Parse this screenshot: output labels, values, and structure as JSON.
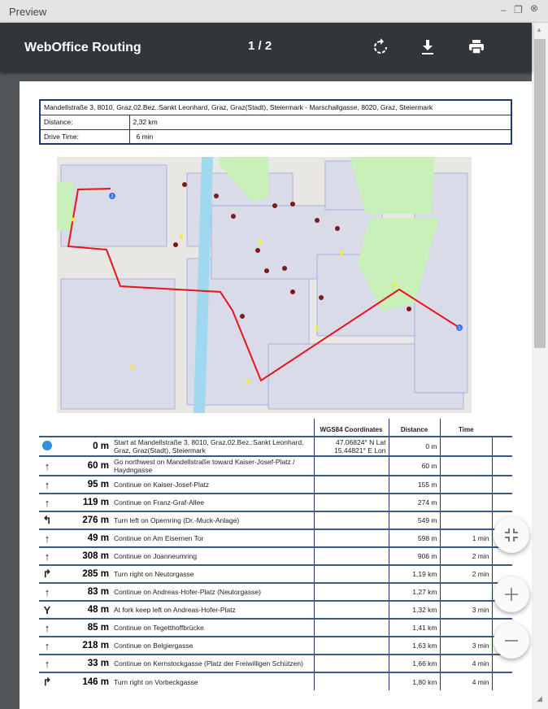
{
  "window": {
    "title": "Preview"
  },
  "toolbar": {
    "app_title": "WebOffice Routing",
    "page_indicator": "1 / 2",
    "icons": [
      "rotate-icon",
      "download-icon",
      "print-icon"
    ]
  },
  "summary": {
    "route": "Mandellstraße 3, 8010, Graz,02.Bez.:Sankt Leonhard, Graz, Graz(Stadt), Steiermark - Marschallgasse, 8020, Graz, Steiermark",
    "distance_label": "Distance:",
    "distance": "2,32 km",
    "time_label": "Drive Time:",
    "time": "6 min"
  },
  "directions": {
    "headers": {
      "coords": "WGS84 Coordinates",
      "distance": "Distance",
      "time": "Time"
    },
    "rows": [
      {
        "icon": "start-dot",
        "seg": "0 m",
        "text": "Start at Mandellstraße 3, 8010, Graz,02.Bez.:Sankt Leonhard, Graz, Graz(Stadt), Steiermark",
        "coords": "47.06824° N Lat 15.44821° E Lon",
        "dist": "0 m",
        "time": ""
      },
      {
        "icon": "↑",
        "seg": "60 m",
        "text": "Go northwest on Mandellstraße toward Kaiser-Josef-Platz / Haydngasse",
        "coords": "",
        "dist": "60 m",
        "time": ""
      },
      {
        "icon": "↑",
        "seg": "95 m",
        "text": "Continue on Kaiser-Josef-Platz",
        "coords": "",
        "dist": "155 m",
        "time": ""
      },
      {
        "icon": "↑",
        "seg": "119 m",
        "text": "Continue on Franz-Graf-Allee",
        "coords": "",
        "dist": "274 m",
        "time": ""
      },
      {
        "icon": "↰",
        "seg": "276 m",
        "text": "Turn left on Opernring (Dr.-Muck-Anlage)",
        "coords": "",
        "dist": "549 m",
        "time": ""
      },
      {
        "icon": "↑",
        "seg": "49 m",
        "text": "Continue on Am Eisernen Tor",
        "coords": "",
        "dist": "598 m",
        "time": "1 min"
      },
      {
        "icon": "↑",
        "seg": "308 m",
        "text": "Continue on Joanneumring",
        "coords": "",
        "dist": "906 m",
        "time": "2 min"
      },
      {
        "icon": "↱",
        "seg": "285 m",
        "text": "Turn right on Neutorgasse",
        "coords": "",
        "dist": "1,19 km",
        "time": "2 min"
      },
      {
        "icon": "↑",
        "seg": "83 m",
        "text": "Continue on Andreas-Hofer-Platz (Neutorgasse)",
        "coords": "",
        "dist": "1,27 km",
        "time": ""
      },
      {
        "icon": "Y",
        "seg": "48 m",
        "text": "At fork keep left on Andreas-Hofer-Platz",
        "coords": "",
        "dist": "1,32 km",
        "time": "3 min"
      },
      {
        "icon": "↑",
        "seg": "85 m",
        "text": "Continue on Tegetthoffbrücke",
        "coords": "",
        "dist": "1,41 km",
        "time": ""
      },
      {
        "icon": "↑",
        "seg": "218 m",
        "text": "Continue on Belgiergasse",
        "coords": "",
        "dist": "1,63 km",
        "time": "3 min"
      },
      {
        "icon": "↑",
        "seg": "33 m",
        "text": "Continue on Kernstockgasse (Platz der Freiwilligen Schützen)",
        "coords": "",
        "dist": "1,66 km",
        "time": "4 min"
      },
      {
        "icon": "↱",
        "seg": "146 m",
        "text": "Turn right on Vorbeckgasse",
        "coords": "",
        "dist": "1,80 km",
        "time": "4 min"
      }
    ]
  },
  "map": {
    "start_marker": "1",
    "end_marker": "2",
    "route_color": "#e8141a",
    "river_color": "#9fd8ef",
    "park_color": "#c8f0b8"
  },
  "fabs": [
    "fit-page-icon",
    "zoom-in-icon",
    "zoom-out-icon"
  ]
}
